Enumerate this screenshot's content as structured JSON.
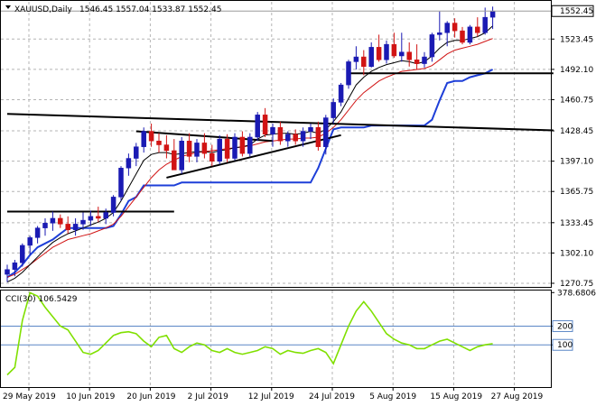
{
  "header": {
    "symbol_timeframe": "XAUUSD,Daily",
    "ohlc": "1546.45 1557.04 1533.87 1552.45"
  },
  "indicator": {
    "label": "CCI(30) 106.5429"
  },
  "chart_data": [
    {
      "type": "candlestick",
      "x_labels": [
        "29 May 2019",
        "10 Jun 2019",
        "20 Jun 2019",
        "2 Jul 2019",
        "12 Jul 2019",
        "24 Jul 2019",
        "5 Aug 2019",
        "15 Aug 2019",
        "27 Aug 2019"
      ],
      "x_label_index": [
        0,
        8,
        16,
        24,
        32,
        40,
        48,
        56,
        64
      ],
      "y_ticks": [
        1270.75,
        1302.1,
        1333.45,
        1365.75,
        1397.1,
        1428.45,
        1460.75,
        1492.1,
        1523.45
      ],
      "ylim": [
        1267,
        1562
      ],
      "last_price": 1552.45,
      "ohlc": [
        [
          1280,
          1290,
          1272,
          1285
        ],
        [
          1285,
          1295,
          1278,
          1292
        ],
        [
          1292,
          1312,
          1288,
          1310
        ],
        [
          1310,
          1320,
          1300,
          1318
        ],
        [
          1318,
          1330,
          1312,
          1328
        ],
        [
          1328,
          1338,
          1320,
          1333
        ],
        [
          1333,
          1345,
          1325,
          1338
        ],
        [
          1338,
          1342,
          1328,
          1332
        ],
        [
          1332,
          1340,
          1322,
          1326
        ],
        [
          1326,
          1338,
          1320,
          1332
        ],
        [
          1332,
          1344,
          1326,
          1336
        ],
        [
          1336,
          1346,
          1330,
          1340
        ],
        [
          1340,
          1350,
          1334,
          1338
        ],
        [
          1338,
          1348,
          1332,
          1344
        ],
        [
          1344,
          1362,
          1340,
          1360
        ],
        [
          1360,
          1392,
          1356,
          1390
        ],
        [
          1390,
          1405,
          1382,
          1400
        ],
        [
          1400,
          1416,
          1392,
          1412
        ],
        [
          1412,
          1432,
          1406,
          1428
        ],
        [
          1428,
          1436,
          1412,
          1418
        ],
        [
          1418,
          1426,
          1406,
          1414
        ],
        [
          1414,
          1424,
          1400,
          1408
        ],
        [
          1408,
          1420,
          1390,
          1388
        ],
        [
          1388,
          1422,
          1384,
          1418
        ],
        [
          1418,
          1426,
          1396,
          1402
        ],
        [
          1402,
          1420,
          1396,
          1416
        ],
        [
          1416,
          1426,
          1400,
          1405
        ],
        [
          1405,
          1414,
          1392,
          1397
        ],
        [
          1397,
          1424,
          1394,
          1420
        ],
        [
          1420,
          1425,
          1396,
          1400
        ],
        [
          1400,
          1426,
          1398,
          1422
        ],
        [
          1422,
          1428,
          1402,
          1405
        ],
        [
          1405,
          1426,
          1402,
          1422
        ],
        [
          1422,
          1448,
          1418,
          1445
        ],
        [
          1445,
          1452,
          1422,
          1425
        ],
        [
          1425,
          1436,
          1412,
          1432
        ],
        [
          1432,
          1438,
          1414,
          1418
        ],
        [
          1418,
          1428,
          1412,
          1425
        ],
        [
          1425,
          1430,
          1414,
          1418
        ],
        [
          1418,
          1432,
          1412,
          1428
        ],
        [
          1428,
          1436,
          1420,
          1432
        ],
        [
          1432,
          1438,
          1408,
          1412
        ],
        [
          1412,
          1445,
          1404,
          1442
        ],
        [
          1442,
          1462,
          1436,
          1458
        ],
        [
          1458,
          1478,
          1454,
          1476
        ],
        [
          1476,
          1502,
          1472,
          1500
        ],
        [
          1500,
          1516,
          1492,
          1505
        ],
        [
          1505,
          1512,
          1486,
          1495
        ],
        [
          1495,
          1520,
          1494,
          1515
        ],
        [
          1515,
          1528,
          1500,
          1502
        ],
        [
          1502,
          1522,
          1498,
          1518
        ],
        [
          1518,
          1530,
          1504,
          1506
        ],
        [
          1506,
          1530,
          1500,
          1510
        ],
        [
          1510,
          1520,
          1495,
          1502
        ],
        [
          1502,
          1518,
          1492,
          1498
        ],
        [
          1498,
          1510,
          1494,
          1505
        ],
        [
          1505,
          1530,
          1500,
          1528
        ],
        [
          1528,
          1552,
          1522,
          1530
        ],
        [
          1530,
          1542,
          1516,
          1540
        ],
        [
          1540,
          1545,
          1525,
          1532
        ],
        [
          1532,
          1536,
          1518,
          1520
        ],
        [
          1520,
          1538,
          1518,
          1536
        ],
        [
          1536,
          1546,
          1526,
          1530
        ],
        [
          1530,
          1556,
          1528,
          1546
        ],
        [
          1546,
          1557.04,
          1533.87,
          1552.45
        ]
      ],
      "ma_red": [
        1277,
        1280,
        1285,
        1290,
        1296,
        1302,
        1308,
        1312,
        1316,
        1318,
        1320,
        1322,
        1325,
        1328,
        1332,
        1340,
        1350,
        1360,
        1370,
        1380,
        1388,
        1394,
        1398,
        1402,
        1404,
        1406,
        1407,
        1408,
        1409,
        1410,
        1411,
        1412,
        1413,
        1415,
        1417,
        1418,
        1419,
        1420,
        1420,
        1421,
        1421,
        1422,
        1426,
        1432,
        1440,
        1450,
        1460,
        1468,
        1474,
        1480,
        1484,
        1487,
        1490,
        1491,
        1492,
        1493,
        1496,
        1502,
        1508,
        1512,
        1514,
        1516,
        1518,
        1521,
        1524
      ],
      "ma_black": [
        1272,
        1276,
        1282,
        1290,
        1298,
        1306,
        1313,
        1318,
        1322,
        1325,
        1328,
        1331,
        1334,
        1338,
        1344,
        1356,
        1370,
        1384,
        1398,
        1404,
        1406,
        1406,
        1404,
        1405,
        1406,
        1407,
        1407,
        1406,
        1408,
        1409,
        1411,
        1412,
        1414,
        1420,
        1424,
        1425,
        1426,
        1426,
        1425,
        1426,
        1428,
        1426,
        1430,
        1438,
        1448,
        1462,
        1476,
        1484,
        1490,
        1494,
        1497,
        1499,
        1501,
        1500,
        1498,
        1500,
        1506,
        1514,
        1520,
        1522,
        1522,
        1524,
        1526,
        1530,
        1537
      ],
      "ma_blue": [
        1277,
        1282,
        1290,
        1300,
        1308,
        1312,
        1316,
        1322,
        1328,
        1328,
        1328,
        1328,
        1328,
        1328,
        1330,
        1342,
        1356,
        1360,
        1372,
        1372,
        1372,
        1372,
        1372,
        1375,
        1375,
        1375,
        1375,
        1375,
        1375,
        1375,
        1375,
        1375,
        1375,
        1375,
        1375,
        1375,
        1375,
        1375,
        1375,
        1375,
        1375,
        1390,
        1410,
        1430,
        1432,
        1432,
        1432,
        1432,
        1434,
        1434,
        1434,
        1434,
        1434,
        1434,
        1434,
        1434,
        1440,
        1460,
        1478,
        1480,
        1480,
        1484,
        1486,
        1488,
        1492
      ],
      "horizontal_levels": [
        {
          "from": 0,
          "to": 22,
          "price": 1345,
          "color": "#000000"
        },
        {
          "from": 45,
          "to": 72,
          "price": 1488,
          "color": "#000000"
        }
      ],
      "trendlines": [
        {
          "p1": [
            0,
            1446
          ],
          "p2": [
            72,
            1429
          ],
          "color": "#000000"
        },
        {
          "p1": [
            17,
            1428
          ],
          "p2": [
            35,
            1418
          ],
          "color": "#000000"
        },
        {
          "p1": [
            21,
            1380
          ],
          "p2": [
            44,
            1424
          ],
          "color": "#000000"
        }
      ],
      "colors": {
        "up": "#1a1ab3",
        "down": "#d11414",
        "ma_red": "#d11414",
        "ma_black": "#000000",
        "ma_blue": "#1e3fd8"
      }
    },
    {
      "type": "line",
      "name": "CCI",
      "y_ticks_labeled": [
        378.6806,
        200,
        100
      ],
      "last_value": 106.5429,
      "ylim": [
        -120,
        380
      ],
      "levels": [
        200,
        100
      ],
      "values": [
        -60,
        -20,
        230,
        378,
        360,
        300,
        250,
        200,
        180,
        120,
        60,
        50,
        70,
        110,
        150,
        165,
        170,
        160,
        120,
        90,
        140,
        150,
        80,
        60,
        90,
        110,
        100,
        70,
        60,
        80,
        60,
        50,
        60,
        70,
        90,
        80,
        50,
        70,
        60,
        55,
        70,
        80,
        60,
        0,
        100,
        200,
        280,
        330,
        280,
        220,
        160,
        130,
        110,
        100,
        80,
        80,
        100,
        120,
        130,
        110,
        90,
        70,
        90,
        100,
        106.5429
      ],
      "colors": {
        "line": "#80e000",
        "level": "#5a86c6"
      }
    }
  ]
}
